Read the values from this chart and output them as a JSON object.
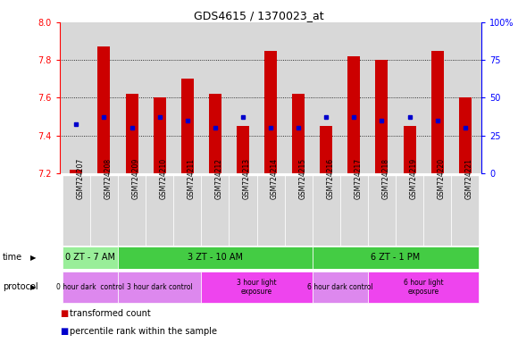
{
  "title": "GDS4615 / 1370023_at",
  "samples": [
    "GSM724207",
    "GSM724208",
    "GSM724209",
    "GSM724210",
    "GSM724211",
    "GSM724212",
    "GSM724213",
    "GSM724214",
    "GSM724215",
    "GSM724216",
    "GSM724217",
    "GSM724218",
    "GSM724219",
    "GSM724220",
    "GSM724221"
  ],
  "bar_bottom": 7.2,
  "bar_tops": [
    7.22,
    7.87,
    7.62,
    7.6,
    7.7,
    7.62,
    7.45,
    7.85,
    7.62,
    7.45,
    7.82,
    7.8,
    7.45,
    7.85,
    7.6
  ],
  "blue_values": [
    7.46,
    7.5,
    7.44,
    7.5,
    7.48,
    7.44,
    7.5,
    7.44,
    7.44,
    7.5,
    7.5,
    7.48,
    7.5,
    7.48,
    7.44
  ],
  "ylim_left": [
    7.2,
    8.0
  ],
  "ylim_right": [
    0,
    100
  ],
  "yticks_left": [
    7.2,
    7.4,
    7.6,
    7.8,
    8.0
  ],
  "ytick_labels_right": [
    "0",
    "25",
    "50",
    "75",
    "100%"
  ],
  "bar_color": "#cc0000",
  "blue_color": "#0000cc",
  "axis_bg": "#d8d8d8",
  "time_spans": [
    {
      "label": "0 ZT - 7 AM",
      "start": 0,
      "end": 2,
      "color": "#99ee99"
    },
    {
      "label": "3 ZT - 10 AM",
      "start": 2,
      "end": 9,
      "color": "#44cc44"
    },
    {
      "label": "6 ZT - 1 PM",
      "start": 9,
      "end": 15,
      "color": "#44cc44"
    }
  ],
  "proto_spans": [
    {
      "label": "0 hour dark  control",
      "start": 0,
      "end": 2,
      "color": "#dd88ee"
    },
    {
      "label": "3 hour dark control",
      "start": 2,
      "end": 5,
      "color": "#dd88ee"
    },
    {
      "label": "3 hour light\nexposure",
      "start": 5,
      "end": 9,
      "color": "#ee44ee"
    },
    {
      "label": "6 hour dark control",
      "start": 9,
      "end": 11,
      "color": "#dd88ee"
    },
    {
      "label": "6 hour light\nexposure",
      "start": 11,
      "end": 15,
      "color": "#ee44ee"
    }
  ],
  "legend_red_label": "transformed count",
  "legend_blue_label": "percentile rank within the sample",
  "time_label": "time",
  "protocol_label": "protocol"
}
